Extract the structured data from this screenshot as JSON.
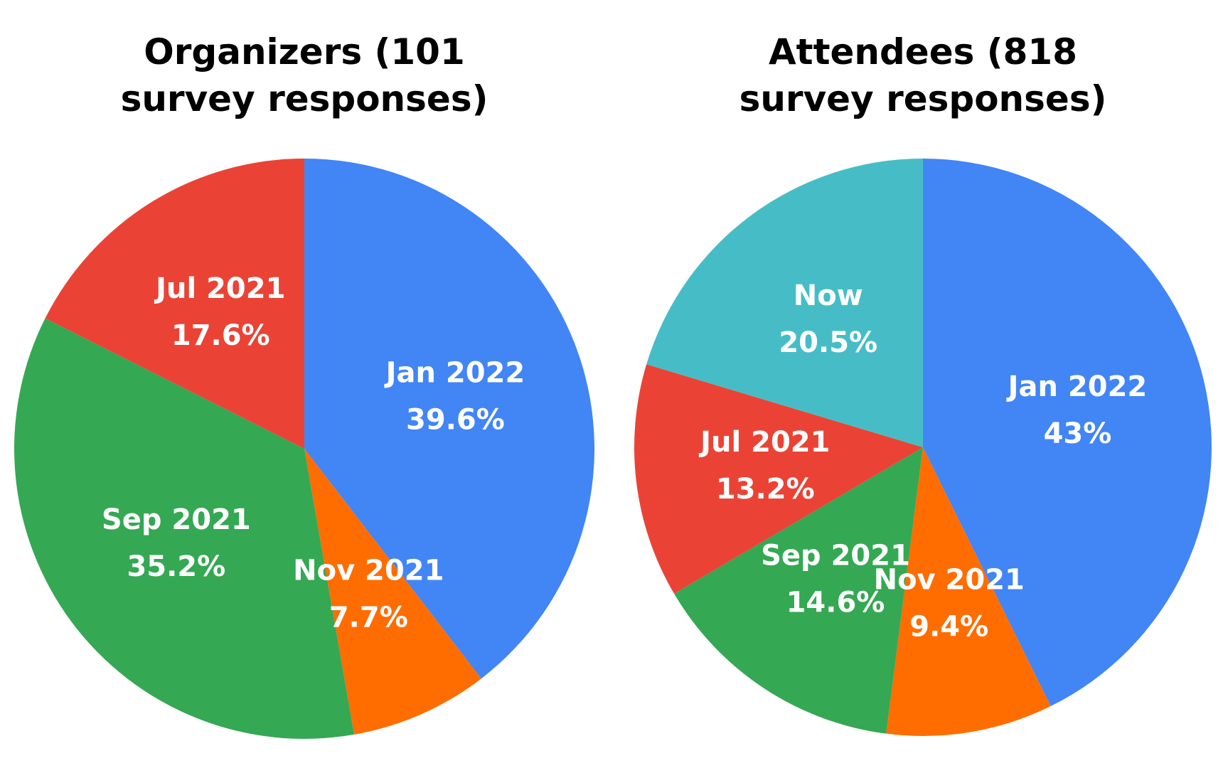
{
  "chart_data": [
    {
      "type": "pie",
      "title": "Organizers (101 survey responses)",
      "categories": [
        "Jan 2022",
        "Nov 2021",
        "Sep 2021",
        "Jul 2021"
      ],
      "values": [
        39.6,
        7.7,
        35.2,
        17.6
      ],
      "value_labels": [
        "39.6%",
        "7.7%",
        "35.2%",
        "17.6%"
      ],
      "colors": [
        "#4285f4",
        "#ff6d01",
        "#34a853",
        "#ea4335"
      ]
    },
    {
      "type": "pie",
      "title": "Attendees (818 survey responses)",
      "categories": [
        "Jan 2022",
        "Nov 2021",
        "Sep 2021",
        "Jul 2021",
        "Now"
      ],
      "values": [
        43,
        9.4,
        14.6,
        13.2,
        20.5
      ],
      "value_labels": [
        "43%",
        "9.4%",
        "14.6%",
        "13.2%",
        "20.5%"
      ],
      "colors": [
        "#4285f4",
        "#ff6d01",
        "#34a853",
        "#ea4335",
        "#46bdc6"
      ]
    }
  ]
}
